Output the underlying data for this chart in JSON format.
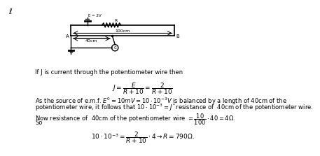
{
  "bg_color": "#ffffff",
  "text_color": "#000000",
  "title_marker": "ℓ",
  "line1": "If J is current through the potentiometer wire then",
  "eq1": "$J = \\dfrac{E}{R + 10} = \\dfrac{2}{R + 10}$",
  "line2": "As the source of e.m.f. $E^{\\prime} = 10mV = 10 \\cdot 10^{-3}V$ is balanced by a length of 40cm of the",
  "line3": "potentiometer wire, it follows that $10 \\cdot 10^{-3} = J^*$resistance of  40cm of the potentiometer wire.",
  "line4": "Now resistance of  40cm of the potentiometer wire $= \\dfrac{10}{100} \\cdot 40 = 4\\Omega$.",
  "line5": "So",
  "eq2": "$10 \\cdot 10^{-3} = \\dfrac{2}{R + 10} \\cdot 4 \\rightarrow R = 790\\Omega$.",
  "circuit": {
    "E_label": "E = 2V",
    "R_label": "R",
    "wire_length": "100cm",
    "tap_length": "40cm",
    "A_label": "A",
    "B_label": "B"
  }
}
